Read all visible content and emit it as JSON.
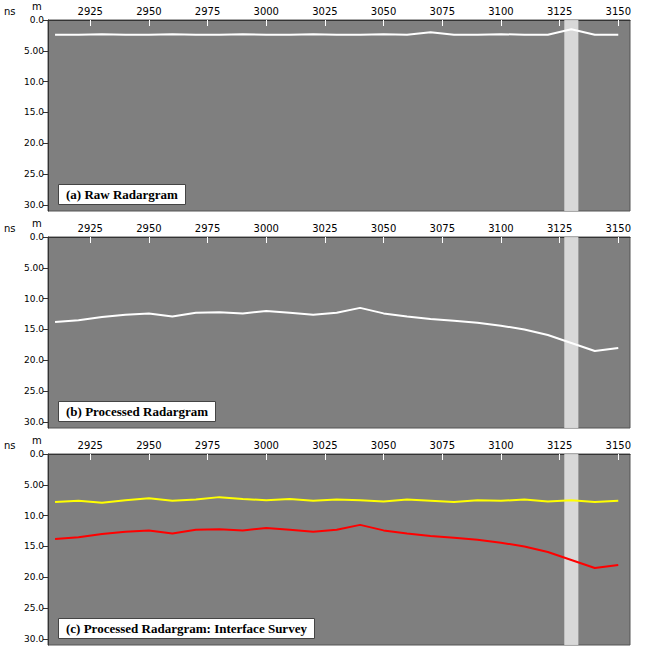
{
  "chart_data": [
    {
      "type": "line",
      "title": "(a) Raw Radargram",
      "xlabel": "m",
      "ylabel": "ns",
      "x": [
        2910,
        2920,
        2930,
        2940,
        2950,
        2960,
        2970,
        2980,
        2990,
        3000,
        3010,
        3020,
        3030,
        3040,
        3050,
        3060,
        3070,
        3080,
        3090,
        3100,
        3110,
        3120,
        3130,
        3140,
        3150
      ],
      "xlim": [
        2907,
        3155
      ],
      "xticks": [
        2925,
        2950,
        2975,
        3000,
        3025,
        3050,
        3075,
        3100,
        3125,
        3150
      ],
      "ylim": [
        0,
        31
      ],
      "yticks": [
        {
          "value": 0,
          "label": "0.0"
        },
        {
          "value": 5,
          "label": "5.00"
        },
        {
          "value": 10,
          "label": "10.0"
        },
        {
          "value": 15,
          "label": "15.0"
        },
        {
          "value": 20,
          "label": "20.0"
        },
        {
          "value": 25,
          "label": "25.0"
        },
        {
          "value": 30,
          "label": "30.0"
        }
      ],
      "anomaly": [
        3127,
        3133
      ],
      "series": [
        {
          "color": "#ffffff",
          "values": [
            2.4,
            2.4,
            2.3,
            2.4,
            2.4,
            2.3,
            2.4,
            2.4,
            2.3,
            2.4,
            2.4,
            2.3,
            2.4,
            2.4,
            2.3,
            2.4,
            2.0,
            2.4,
            2.4,
            2.3,
            2.4,
            2.4,
            1.5,
            2.4,
            2.4
          ]
        }
      ]
    },
    {
      "type": "line",
      "title": "(b) Processed Radargram",
      "xlabel": "m",
      "ylabel": "ns",
      "x": [
        2910,
        2920,
        2930,
        2940,
        2950,
        2960,
        2970,
        2980,
        2990,
        3000,
        3010,
        3020,
        3030,
        3040,
        3050,
        3060,
        3070,
        3080,
        3090,
        3100,
        3110,
        3120,
        3130,
        3140,
        3150
      ],
      "xlim": [
        2907,
        3155
      ],
      "xticks": [
        2925,
        2950,
        2975,
        3000,
        3025,
        3050,
        3075,
        3100,
        3125,
        3150
      ],
      "ylim": [
        0,
        31
      ],
      "yticks": [
        {
          "value": 0,
          "label": "0.0"
        },
        {
          "value": 5,
          "label": "5.00"
        },
        {
          "value": 10,
          "label": "10.0"
        },
        {
          "value": 15,
          "label": "15.0"
        },
        {
          "value": 20,
          "label": "20.0"
        },
        {
          "value": 25,
          "label": "25.0"
        },
        {
          "value": 30,
          "label": "30.0"
        }
      ],
      "anomaly": [
        3127,
        3133
      ],
      "series": [
        {
          "color": "#ffffff",
          "values": [
            13.8,
            13.5,
            13.0,
            12.6,
            12.4,
            12.9,
            12.3,
            12.2,
            12.4,
            12.0,
            12.3,
            12.6,
            12.3,
            11.5,
            12.4,
            12.9,
            13.3,
            13.6,
            13.9,
            14.4,
            15.0,
            15.9,
            17.2,
            18.5,
            18.0
          ]
        }
      ]
    },
    {
      "type": "line",
      "title": "(c) Processed Radargram: Interface Survey",
      "xlabel": "m",
      "ylabel": "ns",
      "x": [
        2910,
        2920,
        2930,
        2940,
        2950,
        2960,
        2970,
        2980,
        2990,
        3000,
        3010,
        3020,
        3030,
        3040,
        3050,
        3060,
        3070,
        3080,
        3090,
        3100,
        3110,
        3120,
        3130,
        3140,
        3150
      ],
      "xlim": [
        2907,
        3155
      ],
      "xticks": [
        2925,
        2950,
        2975,
        3000,
        3025,
        3050,
        3075,
        3100,
        3125,
        3150
      ],
      "ylim": [
        0,
        31
      ],
      "yticks": [
        {
          "value": 0,
          "label": "0.0"
        },
        {
          "value": 5,
          "label": "5.00"
        },
        {
          "value": 10,
          "label": "10.0"
        },
        {
          "value": 15,
          "label": "15.0"
        },
        {
          "value": 20,
          "label": "20.0"
        },
        {
          "value": 25,
          "label": "25.0"
        },
        {
          "value": 30,
          "label": "30.0"
        }
      ],
      "anomaly": [
        3127,
        3133
      ],
      "series": [
        {
          "color": "#ffff00",
          "values": [
            7.8,
            7.6,
            7.9,
            7.5,
            7.2,
            7.6,
            7.4,
            7.0,
            7.3,
            7.5,
            7.3,
            7.6,
            7.4,
            7.5,
            7.7,
            7.4,
            7.6,
            7.8,
            7.5,
            7.6,
            7.4,
            7.7,
            7.5,
            7.8,
            7.6
          ]
        },
        {
          "color": "#ff0000",
          "values": [
            13.8,
            13.5,
            13.0,
            12.6,
            12.4,
            12.9,
            12.3,
            12.2,
            12.4,
            12.0,
            12.3,
            12.6,
            12.3,
            11.5,
            12.4,
            12.9,
            13.3,
            13.6,
            13.9,
            14.4,
            15.0,
            15.9,
            17.2,
            18.5,
            18.0
          ]
        }
      ]
    }
  ]
}
